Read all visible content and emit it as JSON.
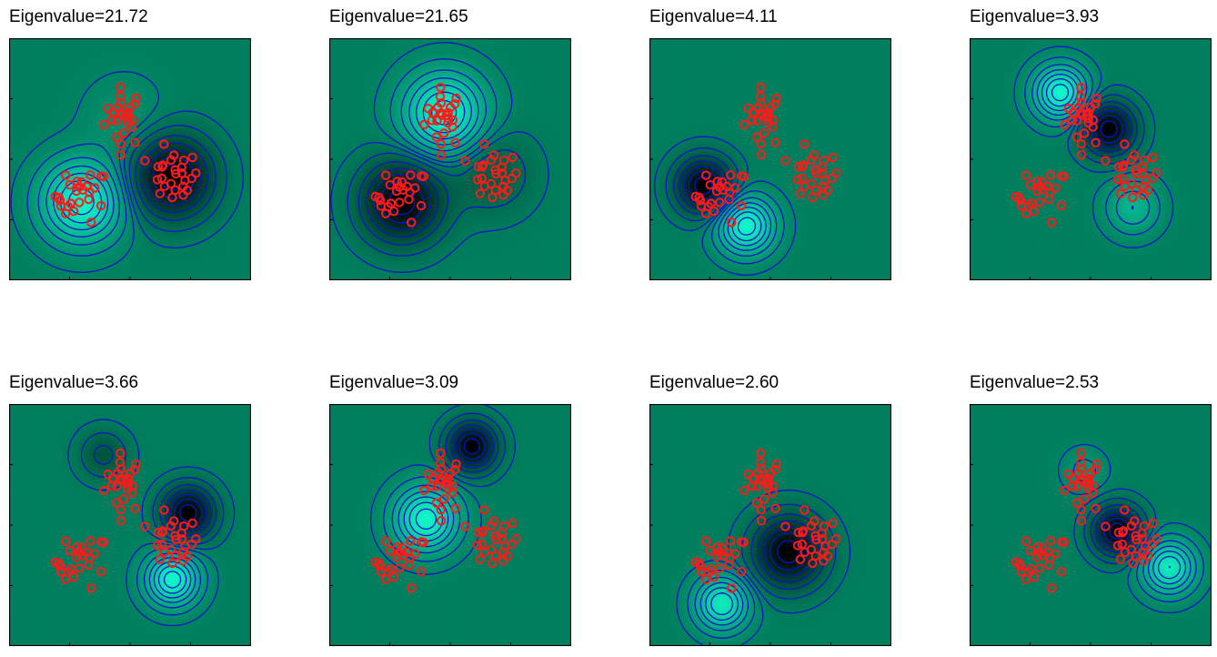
{
  "chart_data": {
    "type": "heatmap",
    "layout": {
      "rows": 2,
      "cols": 4
    },
    "axes": {
      "xticklabels": "none",
      "yticklabels": "none",
      "grid": false,
      "legend": false
    },
    "colors": {
      "low": "#000000",
      "mid": "#007f5e",
      "high": "#12f5c8",
      "contour": "#0a14c8",
      "marker": "#ff1a1a"
    },
    "clusters": [
      {
        "center": [
          -0.05,
          0.35
        ],
        "spread": [
          0.08,
          0.12
        ]
      },
      {
        "center": [
          -0.4,
          -0.3
        ],
        "spread": [
          0.11,
          0.11
        ]
      },
      {
        "center": [
          0.35,
          -0.15
        ],
        "spread": [
          0.11,
          0.11
        ]
      }
    ],
    "panels": [
      {
        "title": "Eigenvalue=21.72",
        "bumps": [
          {
            "x": -0.4,
            "y": -0.35,
            "a": 1.0,
            "s": 0.23
          },
          {
            "x": 0.35,
            "y": -0.15,
            "a": -1.0,
            "s": 0.23
          },
          {
            "x": -0.05,
            "y": 0.35,
            "a": 0.15,
            "s": 0.23
          }
        ]
      },
      {
        "title": "Eigenvalue=21.65",
        "bumps": [
          {
            "x": -0.05,
            "y": 0.38,
            "a": 1.0,
            "s": 0.23
          },
          {
            "x": -0.4,
            "y": -0.35,
            "a": -1.0,
            "s": 0.23
          },
          {
            "x": 0.35,
            "y": -0.12,
            "a": -0.3,
            "s": 0.23
          }
        ]
      },
      {
        "title": "Eigenvalue=4.11",
        "bumps": [
          {
            "x": -0.55,
            "y": -0.22,
            "a": -1.0,
            "s": 0.16
          },
          {
            "x": -0.2,
            "y": -0.55,
            "a": 1.0,
            "s": 0.16
          }
        ]
      },
      {
        "title": "Eigenvalue=3.93",
        "bumps": [
          {
            "x": -0.25,
            "y": 0.55,
            "a": 1.0,
            "s": 0.15
          },
          {
            "x": 0.15,
            "y": 0.25,
            "a": -1.0,
            "s": 0.15
          },
          {
            "x": 0.35,
            "y": -0.4,
            "a": 0.45,
            "s": 0.15
          }
        ]
      },
      {
        "title": "Eigenvalue=3.66",
        "bumps": [
          {
            "x": 0.48,
            "y": 0.1,
            "a": -1.0,
            "s": 0.15
          },
          {
            "x": 0.35,
            "y": -0.45,
            "a": 1.0,
            "s": 0.15
          },
          {
            "x": -0.22,
            "y": 0.58,
            "a": -0.35,
            "s": 0.14
          }
        ]
      },
      {
        "title": "Eigenvalue=3.09",
        "bumps": [
          {
            "x": 0.18,
            "y": 0.65,
            "a": -1.0,
            "s": 0.14
          },
          {
            "x": -0.2,
            "y": 0.05,
            "a": 1.0,
            "s": 0.18
          }
        ]
      },
      {
        "title": "Eigenvalue=2.60",
        "bumps": [
          {
            "x": 0.15,
            "y": -0.22,
            "a": -1.0,
            "s": 0.2
          },
          {
            "x": -0.4,
            "y": -0.65,
            "a": 0.9,
            "s": 0.15
          }
        ]
      },
      {
        "title": "Eigenvalue=2.53",
        "bumps": [
          {
            "x": 0.22,
            "y": -0.05,
            "a": -1.0,
            "s": 0.14
          },
          {
            "x": 0.65,
            "y": -0.35,
            "a": 0.9,
            "s": 0.15
          },
          {
            "x": -0.05,
            "y": 0.45,
            "a": 0.2,
            "s": 0.12
          }
        ]
      }
    ]
  }
}
